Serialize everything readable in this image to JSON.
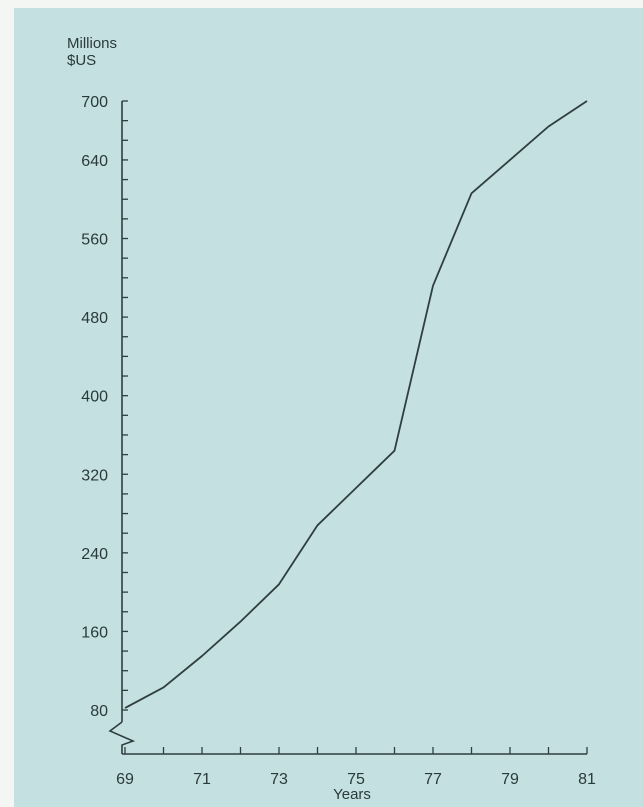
{
  "chart_data": {
    "type": "line",
    "title": "",
    "ylabel": [
      "Millions",
      "$US"
    ],
    "xlabel": "Years",
    "ylim": [
      80,
      700
    ],
    "xlim": [
      69,
      81
    ],
    "yticks": [
      80,
      160,
      240,
      320,
      400,
      480,
      560,
      640,
      700
    ],
    "xticks": [
      69,
      71,
      73,
      75,
      77,
      79,
      81
    ],
    "axis_break": true,
    "grid": false,
    "colors": {
      "line": "#2f3e40",
      "background": "#c4e0e0"
    },
    "series": [
      {
        "x": [
          69,
          70,
          71,
          72,
          73,
          74,
          75,
          76,
          77,
          78,
          79,
          80,
          81
        ],
        "y": [
          82,
          103,
          135,
          170,
          208,
          268,
          306,
          344,
          512,
          606,
          640,
          674,
          700
        ]
      }
    ]
  }
}
